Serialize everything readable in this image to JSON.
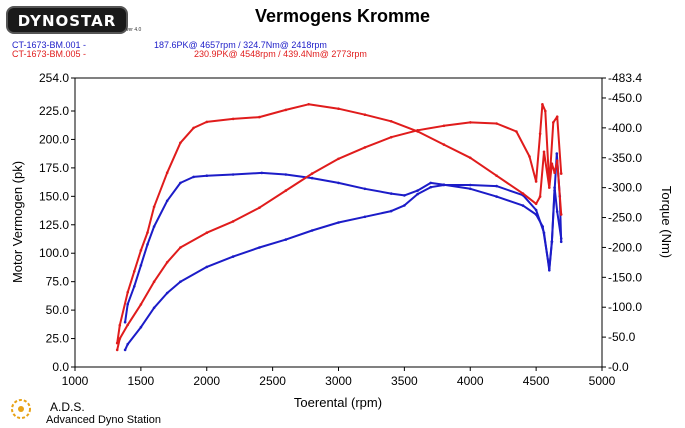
{
  "header": {
    "logo_text": "DYNOSTAR",
    "logo_subtext": "ver 4.0",
    "title": "Vermogens Kromme"
  },
  "runs": [
    {
      "name": "CT-1673-BM.001 -",
      "stats": "187.6PK@ 4657rpm / 324.7Nm@ 2418rpm",
      "color": "#1c1cc8"
    },
    {
      "name": "CT-1673-BM.005 -",
      "stats": "230.9PK@ 4548rpm / 439.4Nm@ 2773rpm",
      "color": "#e01c1c"
    }
  ],
  "footer": {
    "brand": "A.D.S.",
    "subtitle": "Advanced Dyno Station"
  },
  "chart_data": {
    "type": "line",
    "title": "Vermogens Kromme",
    "xlabel": "Toerental (rpm)",
    "ylabel": "Motor Vermogen (pk)",
    "y2label": "Torque (Nm)",
    "xlim": [
      1000,
      5000
    ],
    "ylim": [
      0,
      254.0
    ],
    "y2lim": [
      0,
      483.4
    ],
    "xticks": [
      "1000",
      "1500",
      "2000",
      "2500",
      "3000",
      "3500",
      "4000",
      "4500",
      "5000"
    ],
    "yticks": [
      "0.0",
      "25.0",
      "50.0",
      "75.0",
      "100.0",
      "125.0",
      "150.0",
      "175.0",
      "200.0",
      "225.0",
      "254.0"
    ],
    "y2ticks": [
      "0.0",
      "50.0",
      "100.0",
      "150.0",
      "200.0",
      "250.0",
      "300.0",
      "350.0",
      "400.0",
      "450.0",
      "483.4"
    ],
    "series": [
      {
        "name": "CT-1673-BM.001",
        "quantity": "power",
        "axis": "left",
        "color": "#1c1cc8",
        "x": [
          1380,
          1400,
          1500,
          1600,
          1700,
          1800,
          2000,
          2200,
          2400,
          2600,
          2800,
          3000,
          3200,
          3400,
          3500,
          3600,
          3700,
          3800,
          4000,
          4200,
          4400,
          4500,
          4560,
          4600,
          4620,
          4640,
          4657,
          4680,
          4690
        ],
        "y": [
          15,
          20,
          35,
          52,
          65,
          75,
          88,
          97,
          105,
          112,
          120,
          127,
          132,
          137,
          142,
          152,
          158,
          160,
          160,
          159,
          151,
          138,
          118,
          85,
          110,
          155,
          187.6,
          150,
          110
        ]
      },
      {
        "name": "CT-1673-BM.001",
        "quantity": "torque",
        "axis": "right",
        "color": "#1c1cc8",
        "x": [
          1380,
          1400,
          1450,
          1500,
          1550,
          1600,
          1700,
          1800,
          1900,
          2000,
          2200,
          2418,
          2600,
          2800,
          3000,
          3200,
          3400,
          3500,
          3600,
          3700,
          3800,
          4000,
          4200,
          4400,
          4500,
          4550,
          4600,
          4620,
          4640,
          4660,
          4690
        ],
        "y": [
          75,
          105,
          135,
          170,
          205,
          235,
          278,
          308,
          318,
          320,
          322,
          324.7,
          322,
          316,
          308,
          298,
          290,
          287,
          295,
          308,
          305,
          298,
          285,
          270,
          255,
          235,
          165,
          210,
          300,
          260,
          215
        ]
      },
      {
        "name": "CT-1673-BM.005",
        "quantity": "power",
        "axis": "left",
        "color": "#e01c1c",
        "x": [
          1320,
          1340,
          1400,
          1500,
          1600,
          1700,
          1800,
          2000,
          2200,
          2400,
          2600,
          2800,
          3000,
          3200,
          3400,
          3600,
          3800,
          4000,
          4200,
          4350,
          4450,
          4500,
          4530,
          4548,
          4570,
          4600,
          4630,
          4660,
          4690
        ],
        "y": [
          15,
          25,
          37,
          55,
          75,
          92,
          105,
          118,
          128,
          140,
          155,
          170,
          183,
          193,
          202,
          208,
          212,
          215,
          214,
          207,
          185,
          163,
          205,
          230.9,
          225,
          160,
          215,
          220,
          170
        ]
      },
      {
        "name": "CT-1673-BM.005",
        "quantity": "torque",
        "axis": "right",
        "color": "#e01c1c",
        "x": [
          1320,
          1340,
          1400,
          1450,
          1500,
          1550,
          1600,
          1700,
          1800,
          1900,
          2000,
          2200,
          2400,
          2600,
          2773,
          3000,
          3200,
          3400,
          3600,
          3800,
          4000,
          4200,
          4400,
          4500,
          4530,
          4560,
          4600,
          4620,
          4640,
          4660,
          4690
        ],
        "y": [
          40,
          70,
          125,
          160,
          195,
          225,
          268,
          325,
          375,
          400,
          410,
          415,
          418,
          430,
          439.4,
          432,
          422,
          411,
          394,
          372,
          350,
          320,
          290,
          273,
          285,
          360,
          300,
          340,
          325,
          345,
          255
        ]
      }
    ]
  }
}
